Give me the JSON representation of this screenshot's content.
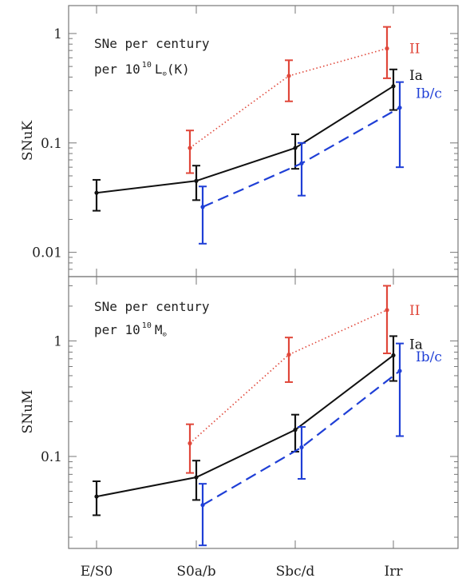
{
  "chart_data": {
    "type": "line",
    "categories": [
      "E/S0",
      "S0a/b",
      "Sbc/d",
      "Irr"
    ],
    "y_scale": "log",
    "colors": {
      "Ia": "#111111",
      "Ib/c": "#1f3fd6",
      "II": "#e0473a"
    },
    "panels": [
      {
        "id": "top",
        "ylabel": "SNuK",
        "annotation_line1": "SNe per century",
        "annotation_line2_prefix": "per 10",
        "annotation_line2_sup": "10",
        "annotation_line2_symbol": "L",
        "annotation_line2_sub": "⊙",
        "annotation_line2_suffix": "(K)",
        "ylim": [
          0.006,
          1.8
        ],
        "yticks": [
          {
            "v": 0.01,
            "label": "0.01"
          },
          {
            "v": 0.1,
            "label": "0.1"
          },
          {
            "v": 1,
            "label": "1"
          }
        ],
        "series": [
          {
            "name": "Ia",
            "style": "solid",
            "offset": 0,
            "values": [
              0.035,
              0.045,
              0.09,
              0.33
            ],
            "err_low": [
              0.024,
              0.03,
              0.058,
              0.2
            ],
            "err_high": [
              0.046,
              0.062,
              0.12,
              0.47
            ]
          },
          {
            "name": "Ib/c",
            "style": "dashed",
            "offset": 1,
            "values": [
              null,
              0.026,
              0.065,
              0.21
            ],
            "err_low": [
              null,
              0.012,
              0.033,
              0.06
            ],
            "err_high": [
              null,
              0.04,
              0.1,
              0.36
            ]
          },
          {
            "name": "II",
            "style": "dotted",
            "offset": -1,
            "values": [
              null,
              0.09,
              0.41,
              0.73
            ],
            "err_low": [
              null,
              0.053,
              0.24,
              0.39
            ],
            "err_high": [
              null,
              0.13,
              0.57,
              1.15
            ]
          }
        ]
      },
      {
        "id": "bottom",
        "ylabel": "SNuM",
        "annotation_line1": "SNe per century",
        "annotation_line2_prefix": "per 10",
        "annotation_line2_sup": "10",
        "annotation_line2_symbol": "M",
        "annotation_line2_sub": "⊙",
        "annotation_line2_suffix": "",
        "ylim": [
          0.016,
          3.6
        ],
        "yticks": [
          {
            "v": 0.1,
            "label": "0.1"
          },
          {
            "v": 1,
            "label": "1"
          }
        ],
        "series": [
          {
            "name": "Ia",
            "style": "solid",
            "offset": 0,
            "values": [
              0.045,
              0.066,
              0.17,
              0.75
            ],
            "err_low": [
              0.031,
              0.042,
              0.11,
              0.45
            ],
            "err_high": [
              0.061,
              0.092,
              0.23,
              1.1
            ]
          },
          {
            "name": "Ib/c",
            "style": "dashed",
            "offset": 1,
            "values": [
              null,
              0.038,
              0.12,
              0.55
            ],
            "err_low": [
              null,
              0.017,
              0.064,
              0.15
            ],
            "err_high": [
              null,
              0.058,
              0.18,
              0.95
            ]
          },
          {
            "name": "II",
            "style": "dotted",
            "offset": -1,
            "values": [
              null,
              0.13,
              0.76,
              1.85
            ],
            "err_low": [
              null,
              0.072,
              0.44,
              0.78
            ],
            "err_high": [
              null,
              0.19,
              1.07,
              3.0
            ]
          }
        ]
      }
    ]
  }
}
